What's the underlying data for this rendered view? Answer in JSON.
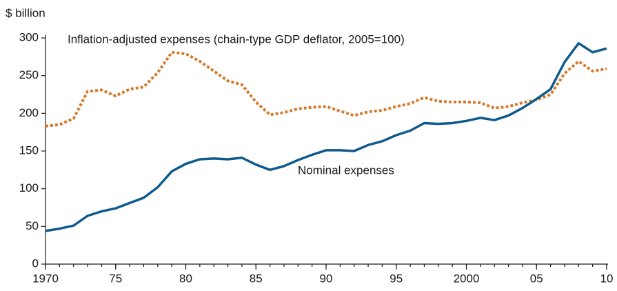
{
  "chart_data": {
    "type": "line",
    "y_label": "$ billion",
    "x": [
      1970,
      1971,
      1972,
      1973,
      1974,
      1975,
      1976,
      1977,
      1978,
      1979,
      1980,
      1981,
      1982,
      1983,
      1984,
      1985,
      1986,
      1987,
      1988,
      1989,
      1990,
      1991,
      1992,
      1993,
      1994,
      1995,
      1996,
      1997,
      1998,
      1999,
      2000,
      2001,
      2002,
      2003,
      2004,
      2005,
      2006,
      2007,
      2008,
      2009,
      2010
    ],
    "series": [
      {
        "name": "Inflation-adjusted expenses (chain-type GDP deflator, 2005=100)",
        "color": "#d57a2b",
        "dashed": true,
        "values": [
          183,
          185,
          193,
          229,
          231,
          223,
          232,
          235,
          254,
          281,
          279,
          269,
          256,
          243,
          238,
          215,
          198,
          201,
          206,
          208,
          209,
          203,
          197,
          202,
          204,
          209,
          213,
          221,
          216,
          215,
          215,
          214,
          207,
          209,
          214,
          218,
          225,
          253,
          269,
          256,
          259
        ]
      },
      {
        "name": "Nominal expenses",
        "color": "#0f5a8c",
        "dashed": false,
        "values": [
          44,
          47,
          51,
          64,
          70,
          74,
          81,
          88,
          102,
          123,
          133,
          139,
          140,
          139,
          141,
          132,
          125,
          130,
          138,
          145,
          151,
          151,
          150,
          158,
          163,
          171,
          177,
          187,
          186,
          187,
          190,
          194,
          191,
          197,
          207,
          219,
          232,
          268,
          293,
          281,
          286
        ]
      }
    ],
    "xlim": [
      1970,
      2010
    ],
    "xticks": [
      1970,
      {
        "value": 1975,
        "label": "75"
      },
      {
        "value": 1980,
        "label": "80"
      },
      {
        "value": 1985,
        "label": "85"
      },
      {
        "value": 1990,
        "label": "90"
      },
      {
        "value": 1995,
        "label": "95"
      },
      2000,
      {
        "value": 2005,
        "label": "05"
      },
      {
        "value": 2010,
        "label": "10"
      }
    ],
    "ylim": [
      0,
      300
    ],
    "yticks": [
      0,
      50,
      100,
      150,
      200,
      250,
      300
    ],
    "grid": false
  }
}
